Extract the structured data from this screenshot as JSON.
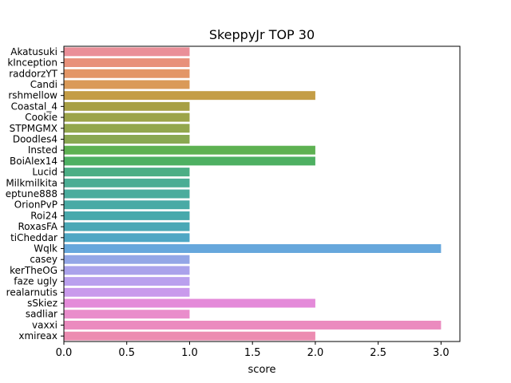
{
  "chart_data": {
    "type": "bar",
    "orientation": "horizontal",
    "title": "SkeppyJr TOP 30",
    "xlabel": "score",
    "ylabel": "",
    "xlim": [
      0,
      3.15
    ],
    "xticks": [
      "0.0",
      "0.5",
      "1.0",
      "1.5",
      "2.0",
      "2.5",
      "3.0"
    ],
    "grid": false,
    "categories": [
      "Akatusuki",
      "kInception",
      "raddorzYT",
      "Candi",
      "rshmellow",
      "Coastal_4",
      "Cookie",
      "STPMGMX",
      "Doodles4",
      "Insted",
      "BoiAlex14",
      "Lucid",
      "Milkmilkita",
      "eptune888",
      "OrionPvP",
      "Roi24",
      "RoxasFA",
      "tiCheddar",
      "Wqlk",
      "casey",
      "kerTheOG",
      "faze ugly",
      "realarnutis",
      "sSkiez",
      "sadliar",
      "vaxxi",
      "xmireax"
    ],
    "values": [
      1,
      1,
      1,
      1,
      2,
      1,
      1,
      1,
      1,
      2,
      2,
      1,
      1,
      1,
      1,
      1,
      1,
      1,
      3,
      1,
      1,
      1,
      1,
      2,
      1,
      3,
      2
    ],
    "colors": [
      "#ea8f98",
      "#e8917a",
      "#e39666",
      "#da9a58",
      "#c49d46",
      "#a79f44",
      "#9ca449",
      "#93a74d",
      "#8aa851",
      "#5eb152",
      "#4eb062",
      "#4cae85",
      "#4bad94",
      "#4aac9d",
      "#49aaa5",
      "#48a9ac",
      "#4aa8b6",
      "#4fa7c4",
      "#66a7dc",
      "#93a6e6",
      "#aaa2eb",
      "#baa0ee",
      "#c99aec",
      "#e48ad9",
      "#e98dcb",
      "#eb8bbf",
      "#ec8cb1"
    ]
  }
}
